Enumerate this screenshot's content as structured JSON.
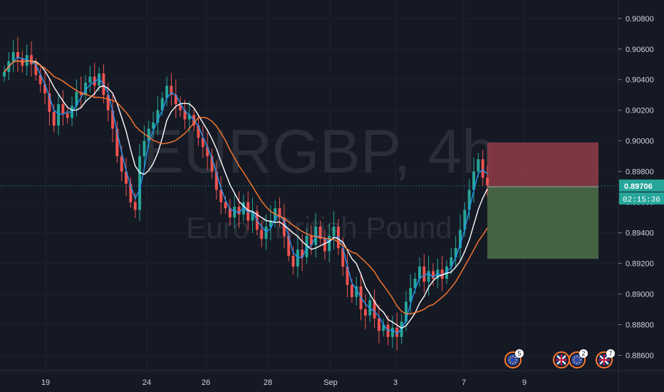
{
  "chart_data": {
    "type": "candlestick",
    "watermark": {
      "symbol": "EURGBP, 4h",
      "description": "Euro / British Pound"
    },
    "ylim": [
      0.885,
      0.9092
    ],
    "y_ticks": [
      "0.90800",
      "0.90600",
      "0.90400",
      "0.90200",
      "0.90000",
      "0.89800",
      "0.89600",
      "0.89400",
      "0.89200",
      "0.89000",
      "0.88800",
      "0.88600"
    ],
    "x_ticks": [
      "19",
      "24",
      "26",
      "28",
      "Sep",
      "3",
      "7",
      "9"
    ],
    "last_price": "0.89706",
    "countdown": "02:15:36",
    "position": {
      "type": "short",
      "entry": 0.897,
      "stop": 0.8999,
      "target": 0.8923,
      "stop_color": "#8a3a44",
      "target_color": "#4a6b47"
    },
    "candles_close": [
      0.9045,
      0.9052,
      0.9058,
      0.9054,
      0.9049,
      0.9056,
      0.905,
      0.9043,
      0.9037,
      0.9031,
      0.9019,
      0.901,
      0.9024,
      0.9018,
      0.9015,
      0.9023,
      0.9032,
      0.903,
      0.9038,
      0.9042,
      0.9036,
      0.9044,
      0.903,
      0.902,
      0.9008,
      0.899,
      0.898,
      0.8972,
      0.896,
      0.8955,
      0.899,
      0.9,
      0.9008,
      0.9012,
      0.902,
      0.9028,
      0.9036,
      0.903,
      0.9024,
      0.902,
      0.9014,
      0.9017,
      0.901,
      0.9002,
      0.8996,
      0.899,
      0.898,
      0.8968,
      0.896,
      0.8956,
      0.895,
      0.8957,
      0.8952,
      0.896,
      0.8948,
      0.8954,
      0.8942,
      0.8936,
      0.8944,
      0.8948,
      0.8956,
      0.895,
      0.8938,
      0.8925,
      0.8918,
      0.8929,
      0.8924,
      0.8938,
      0.8932,
      0.8944,
      0.8936,
      0.8928,
      0.8938,
      0.8944,
      0.893,
      0.8918,
      0.8906,
      0.8898,
      0.8905,
      0.889,
      0.8886,
      0.8896,
      0.8884,
      0.8876,
      0.888,
      0.8872,
      0.8878,
      0.8872,
      0.8882,
      0.8895,
      0.8904,
      0.891,
      0.8918,
      0.8908,
      0.8915,
      0.891,
      0.8916,
      0.891,
      0.8918,
      0.8924,
      0.893,
      0.8942,
      0.8955,
      0.8968,
      0.898,
      0.8988,
      0.8976,
      0.8971
    ],
    "series": [
      {
        "name": "",
        "color": "#2196f3"
      },
      {
        "name": "",
        "color": "#ffffff"
      },
      {
        "name": "",
        "color": "#ff7a2f"
      }
    ],
    "up_color": "#26a69a",
    "down_color": "#ef5350",
    "events": [
      {
        "flags": [
          "eu"
        ],
        "count": "5"
      },
      {
        "flags": [
          "uk",
          "eu"
        ],
        "count": "2"
      },
      {
        "flags": [
          "uk"
        ],
        "count": "7"
      }
    ]
  }
}
